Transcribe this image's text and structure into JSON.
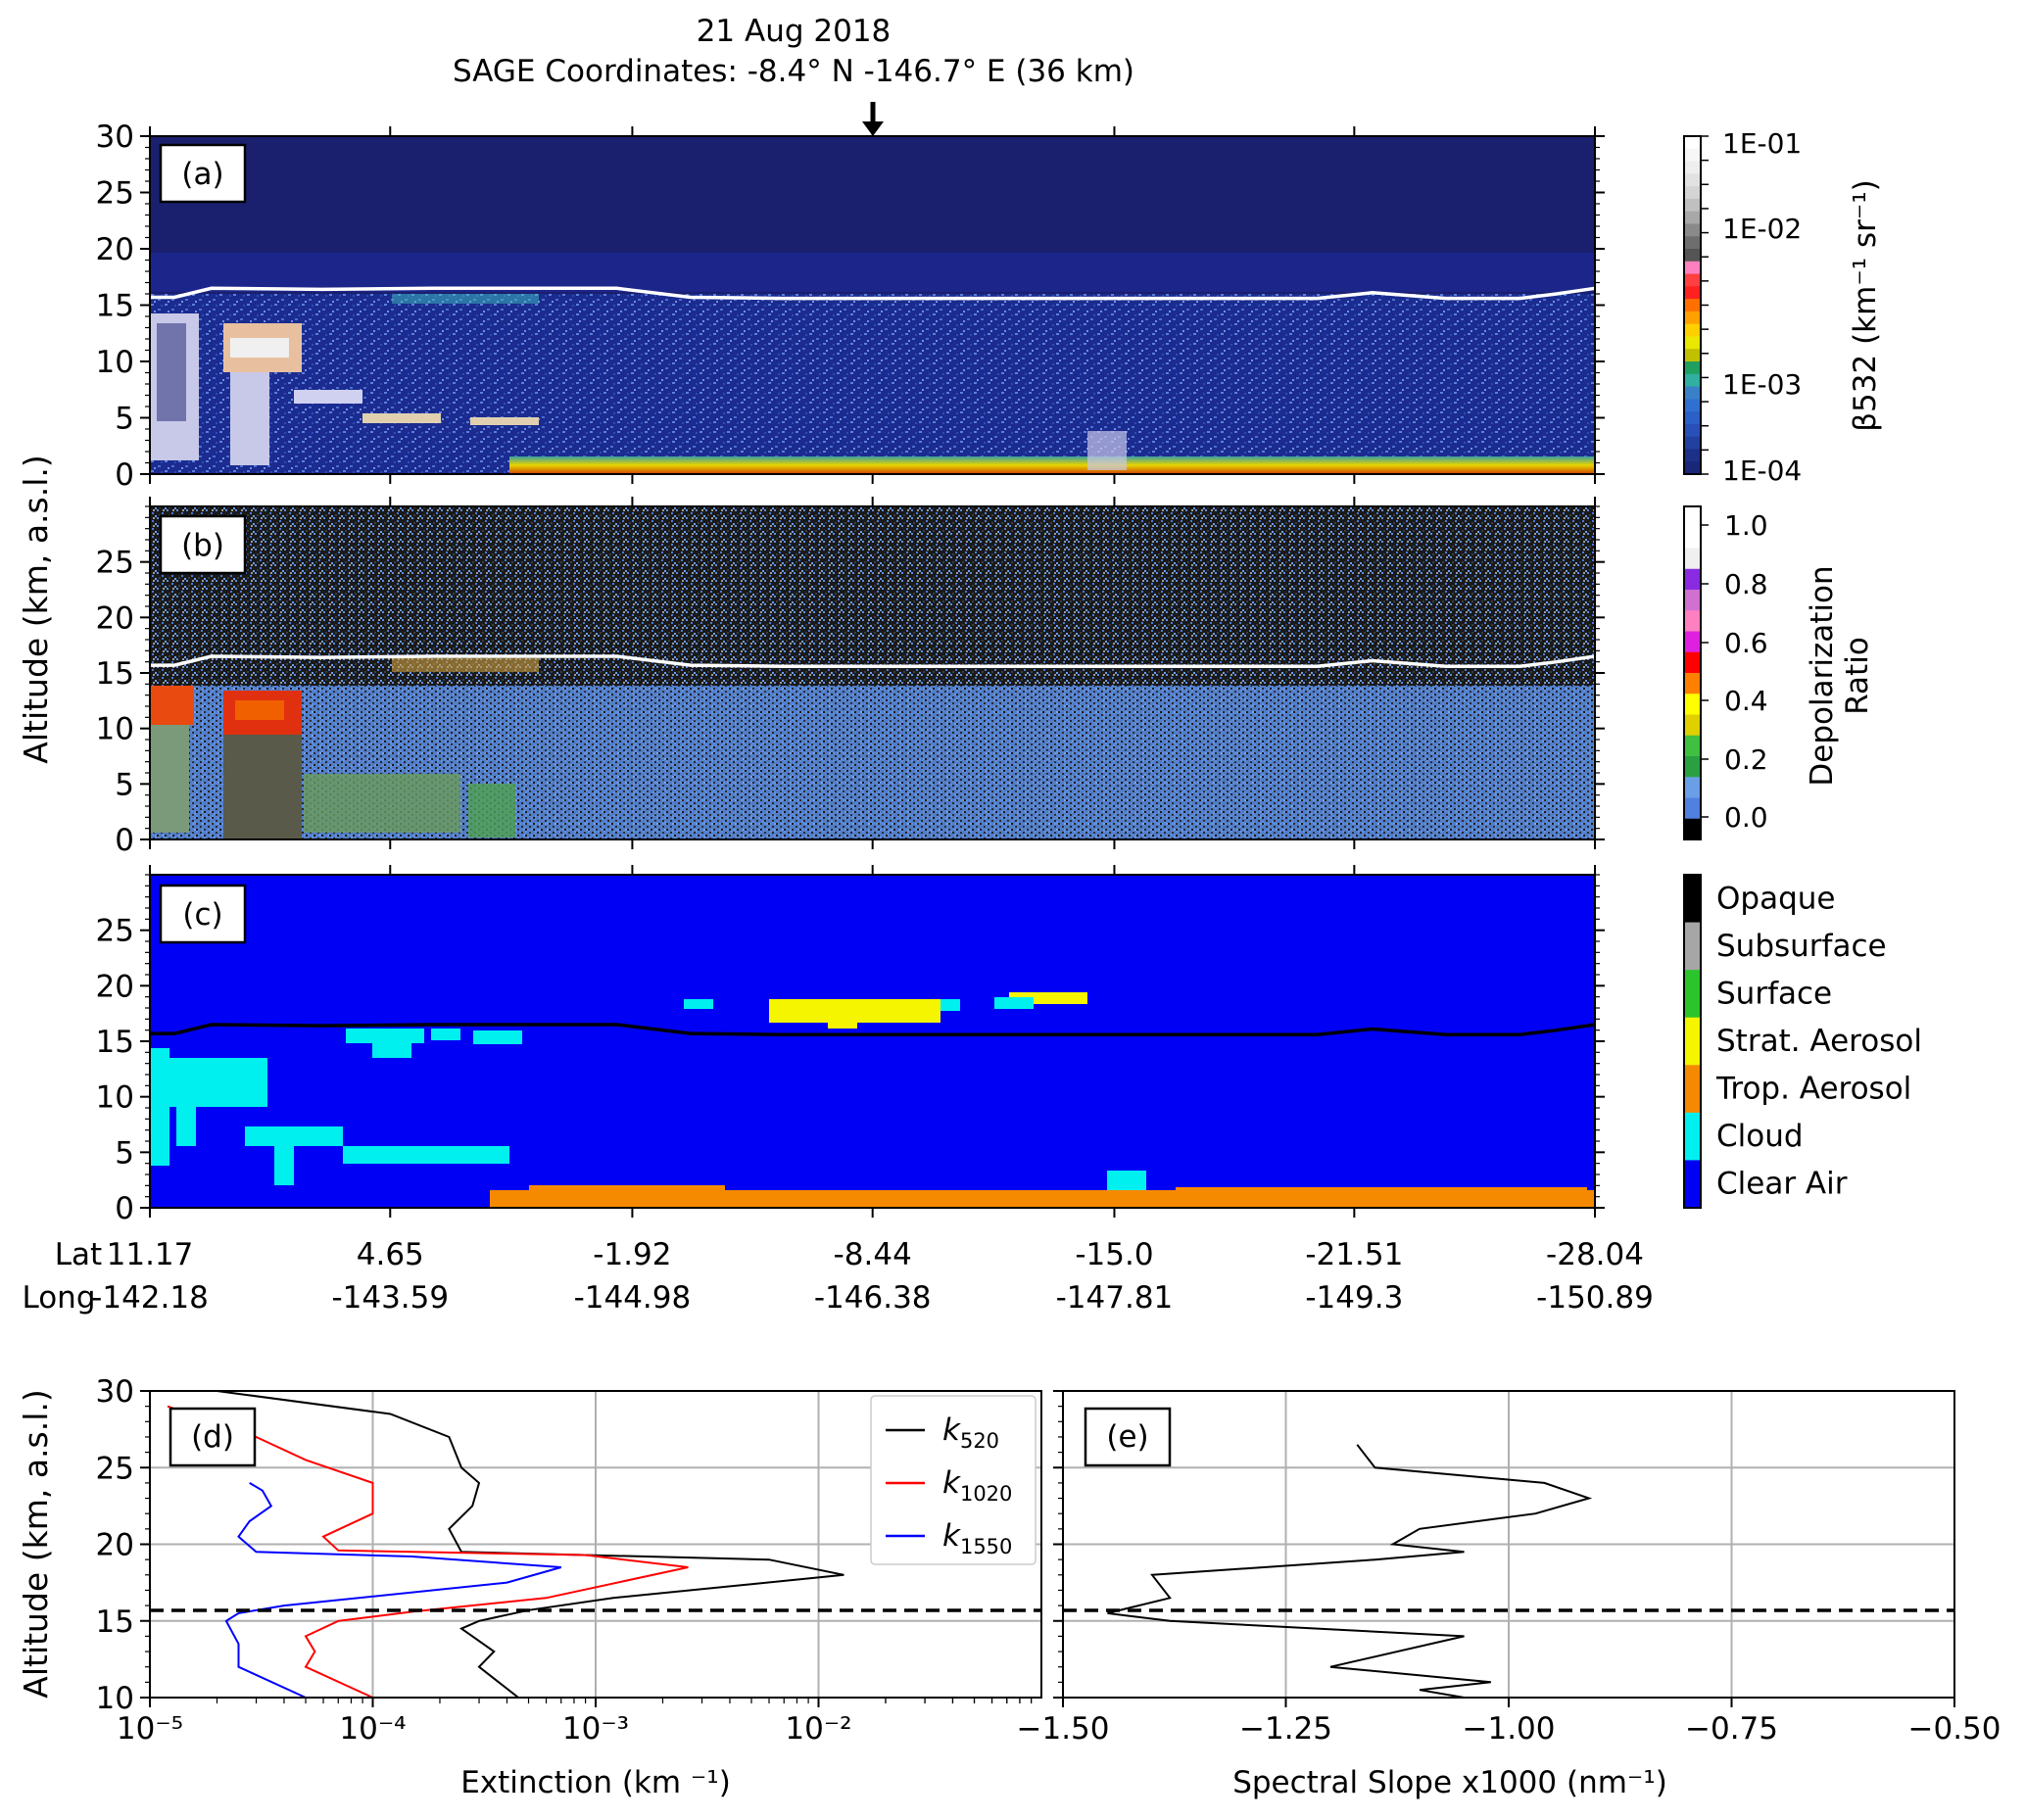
{
  "header": {
    "date": "21 Aug 2018",
    "coords": "SAGE Coordinates: -8.4° N  -146.7° E  (36 km)"
  },
  "panels": {
    "a": {
      "label": "(a)",
      "yticks": [
        "0",
        "5",
        "10",
        "15",
        "20",
        "25",
        "30"
      ]
    },
    "b": {
      "label": "(b)",
      "yticks": [
        "0",
        "5",
        "10",
        "15",
        "20",
        "25"
      ]
    },
    "c": {
      "label": "(c)",
      "yticks": [
        "0",
        "5",
        "10",
        "15",
        "20",
        "25"
      ]
    },
    "d": {
      "label": "(d)"
    },
    "e": {
      "label": "(e)"
    }
  },
  "shared_ylabel": "Altitude (km, a.s.l.)",
  "colorbar_a": {
    "ticks": [
      "1E-01",
      "1E-02",
      "1E-03",
      "1E-04"
    ],
    "label": "β532 (km⁻¹ sr⁻¹)"
  },
  "colorbar_b": {
    "ticks": [
      "1.0",
      "0.8",
      "0.6",
      "0.4",
      "0.2",
      "0.0"
    ],
    "label_line1": "Depolarization",
    "label_line2": "Ratio"
  },
  "colorbar_c": {
    "classes": [
      "Opaque",
      "Subsurface",
      "Surface",
      "Strat. Aerosol",
      "Trop. Aerosol",
      "Cloud",
      "Clear Air"
    ],
    "colors": [
      "#000000",
      "#a6a6a6",
      "#2bc52b",
      "#f5f500",
      "#f58a00",
      "#00f0f0",
      "#0000f5"
    ]
  },
  "track_axis": {
    "lat_label": "Lat",
    "long_label": "Long",
    "lat": [
      "11.17",
      "4.65",
      "-1.92",
      "-8.44",
      "-15.0",
      "-21.51",
      "-28.04"
    ],
    "long": [
      "-142.18",
      "-143.59",
      "-144.98",
      "-146.38",
      "-147.81",
      "-149.3",
      "-150.89"
    ]
  },
  "panel_d": {
    "xlabel": "Extinction (km ⁻¹)",
    "ylabel": "Altitude (km, a.s.l.)",
    "xticks": [
      "10⁻⁵",
      "10⁻⁴",
      "10⁻³",
      "10⁻²"
    ],
    "yticks": [
      "10",
      "15",
      "20",
      "25",
      "30"
    ],
    "legend": [
      "k520",
      "k1020",
      "k1550"
    ]
  },
  "panel_e": {
    "xlabel": "Spectral Slope x1000 (nm⁻¹)",
    "xticks": [
      "−1.50",
      "−1.25",
      "−1.00",
      "−0.75",
      "−0.50"
    ]
  },
  "colors": {
    "bg_dark": "#1a1f6e",
    "clear_air": "#0000f5",
    "k520": "#000000",
    "k1020": "#ff0000",
    "k1550": "#0000ff"
  },
  "chart_data": {
    "type": "line",
    "title": "21 Aug 2018",
    "tropopause_km": 15.7,
    "curtains": {
      "track_lat": [
        11.17,
        4.65,
        -1.92,
        -8.44,
        -15.0,
        -21.51,
        -28.04
      ],
      "track_lon": [
        -142.18,
        -143.59,
        -144.98,
        -146.38,
        -147.81,
        -149.3,
        -150.89
      ],
      "ylim": [
        0,
        30
      ],
      "tropopause_lat": [
        11.17,
        10.5,
        9.5,
        6.5,
        3.5,
        0.5,
        -1.5,
        -3.5,
        -6,
        -10,
        -14,
        -18,
        -20.5,
        -22,
        -24,
        -26,
        -27,
        -28.04
      ],
      "tropopause_km": [
        15.7,
        15.7,
        16.5,
        16.4,
        16.5,
        16.5,
        16.5,
        15.7,
        15.6,
        15.6,
        15.6,
        15.6,
        15.6,
        16.1,
        15.6,
        15.6,
        16.0,
        16.5
      ]
    },
    "xlim_d": [
      1e-05,
      0.1
    ],
    "xscale_d": "log",
    "ylim_d": [
      10,
      30
    ],
    "series": [
      {
        "name": "k520",
        "x": [
          0.00045,
          0.0003,
          0.00035,
          0.00028,
          0.00025,
          0.0003,
          0.0005,
          0.0012,
          0.013,
          0.006,
          0.00025,
          0.00022,
          0.00028,
          0.0003,
          0.00025,
          0.00022,
          0.00012,
          2e-05
        ],
        "y": [
          10,
          12,
          13,
          14,
          14.5,
          15,
          15.7,
          16.5,
          18,
          19,
          19.5,
          21,
          22.5,
          24,
          25,
          27,
          28.5,
          30
        ]
      },
      {
        "name": "k1020",
        "x": [
          0.0001,
          5e-05,
          5.5e-05,
          5e-05,
          7e-05,
          0.00015,
          0.0006,
          0.0026,
          0.0009,
          7e-05,
          6e-05,
          0.0001,
          0.0001,
          5e-05,
          3e-05,
          1.2e-05
        ],
        "y": [
          10,
          12,
          13,
          14,
          15,
          15.6,
          16.5,
          18.5,
          19.3,
          19.6,
          20.5,
          22,
          24,
          25.5,
          27,
          29
        ]
      },
      {
        "name": "k1550",
        "x": [
          5e-05,
          2.5e-05,
          2.5e-05,
          2.2e-05,
          2.5e-05,
          4e-05,
          0.0004,
          0.0007,
          0.00015,
          3e-05,
          2.5e-05,
          2.8e-05,
          3.5e-05,
          3.2e-05,
          2.8e-05
        ],
        "y": [
          10,
          12,
          13.5,
          15,
          15.5,
          16,
          17.5,
          18.5,
          19.2,
          19.5,
          20.5,
          21.5,
          22.5,
          23.5,
          24
        ]
      }
    ],
    "panel_e": {
      "xlim": [
        -1.5,
        -0.5
      ],
      "ylim": [
        10,
        30
      ],
      "x": [
        -1.05,
        -1.1,
        -1.02,
        -1.2,
        -1.05,
        -1.38,
        -1.45,
        -1.38,
        -1.4,
        -1.15,
        -1.05,
        -1.13,
        -1.1,
        -0.97,
        -0.91,
        -0.96,
        -1.15,
        -1.17
      ],
      "y": [
        10,
        10.5,
        11,
        12,
        14,
        15,
        15.5,
        16.5,
        18,
        19,
        19.5,
        20,
        21,
        22,
        23,
        24,
        25,
        26.5
      ]
    }
  }
}
